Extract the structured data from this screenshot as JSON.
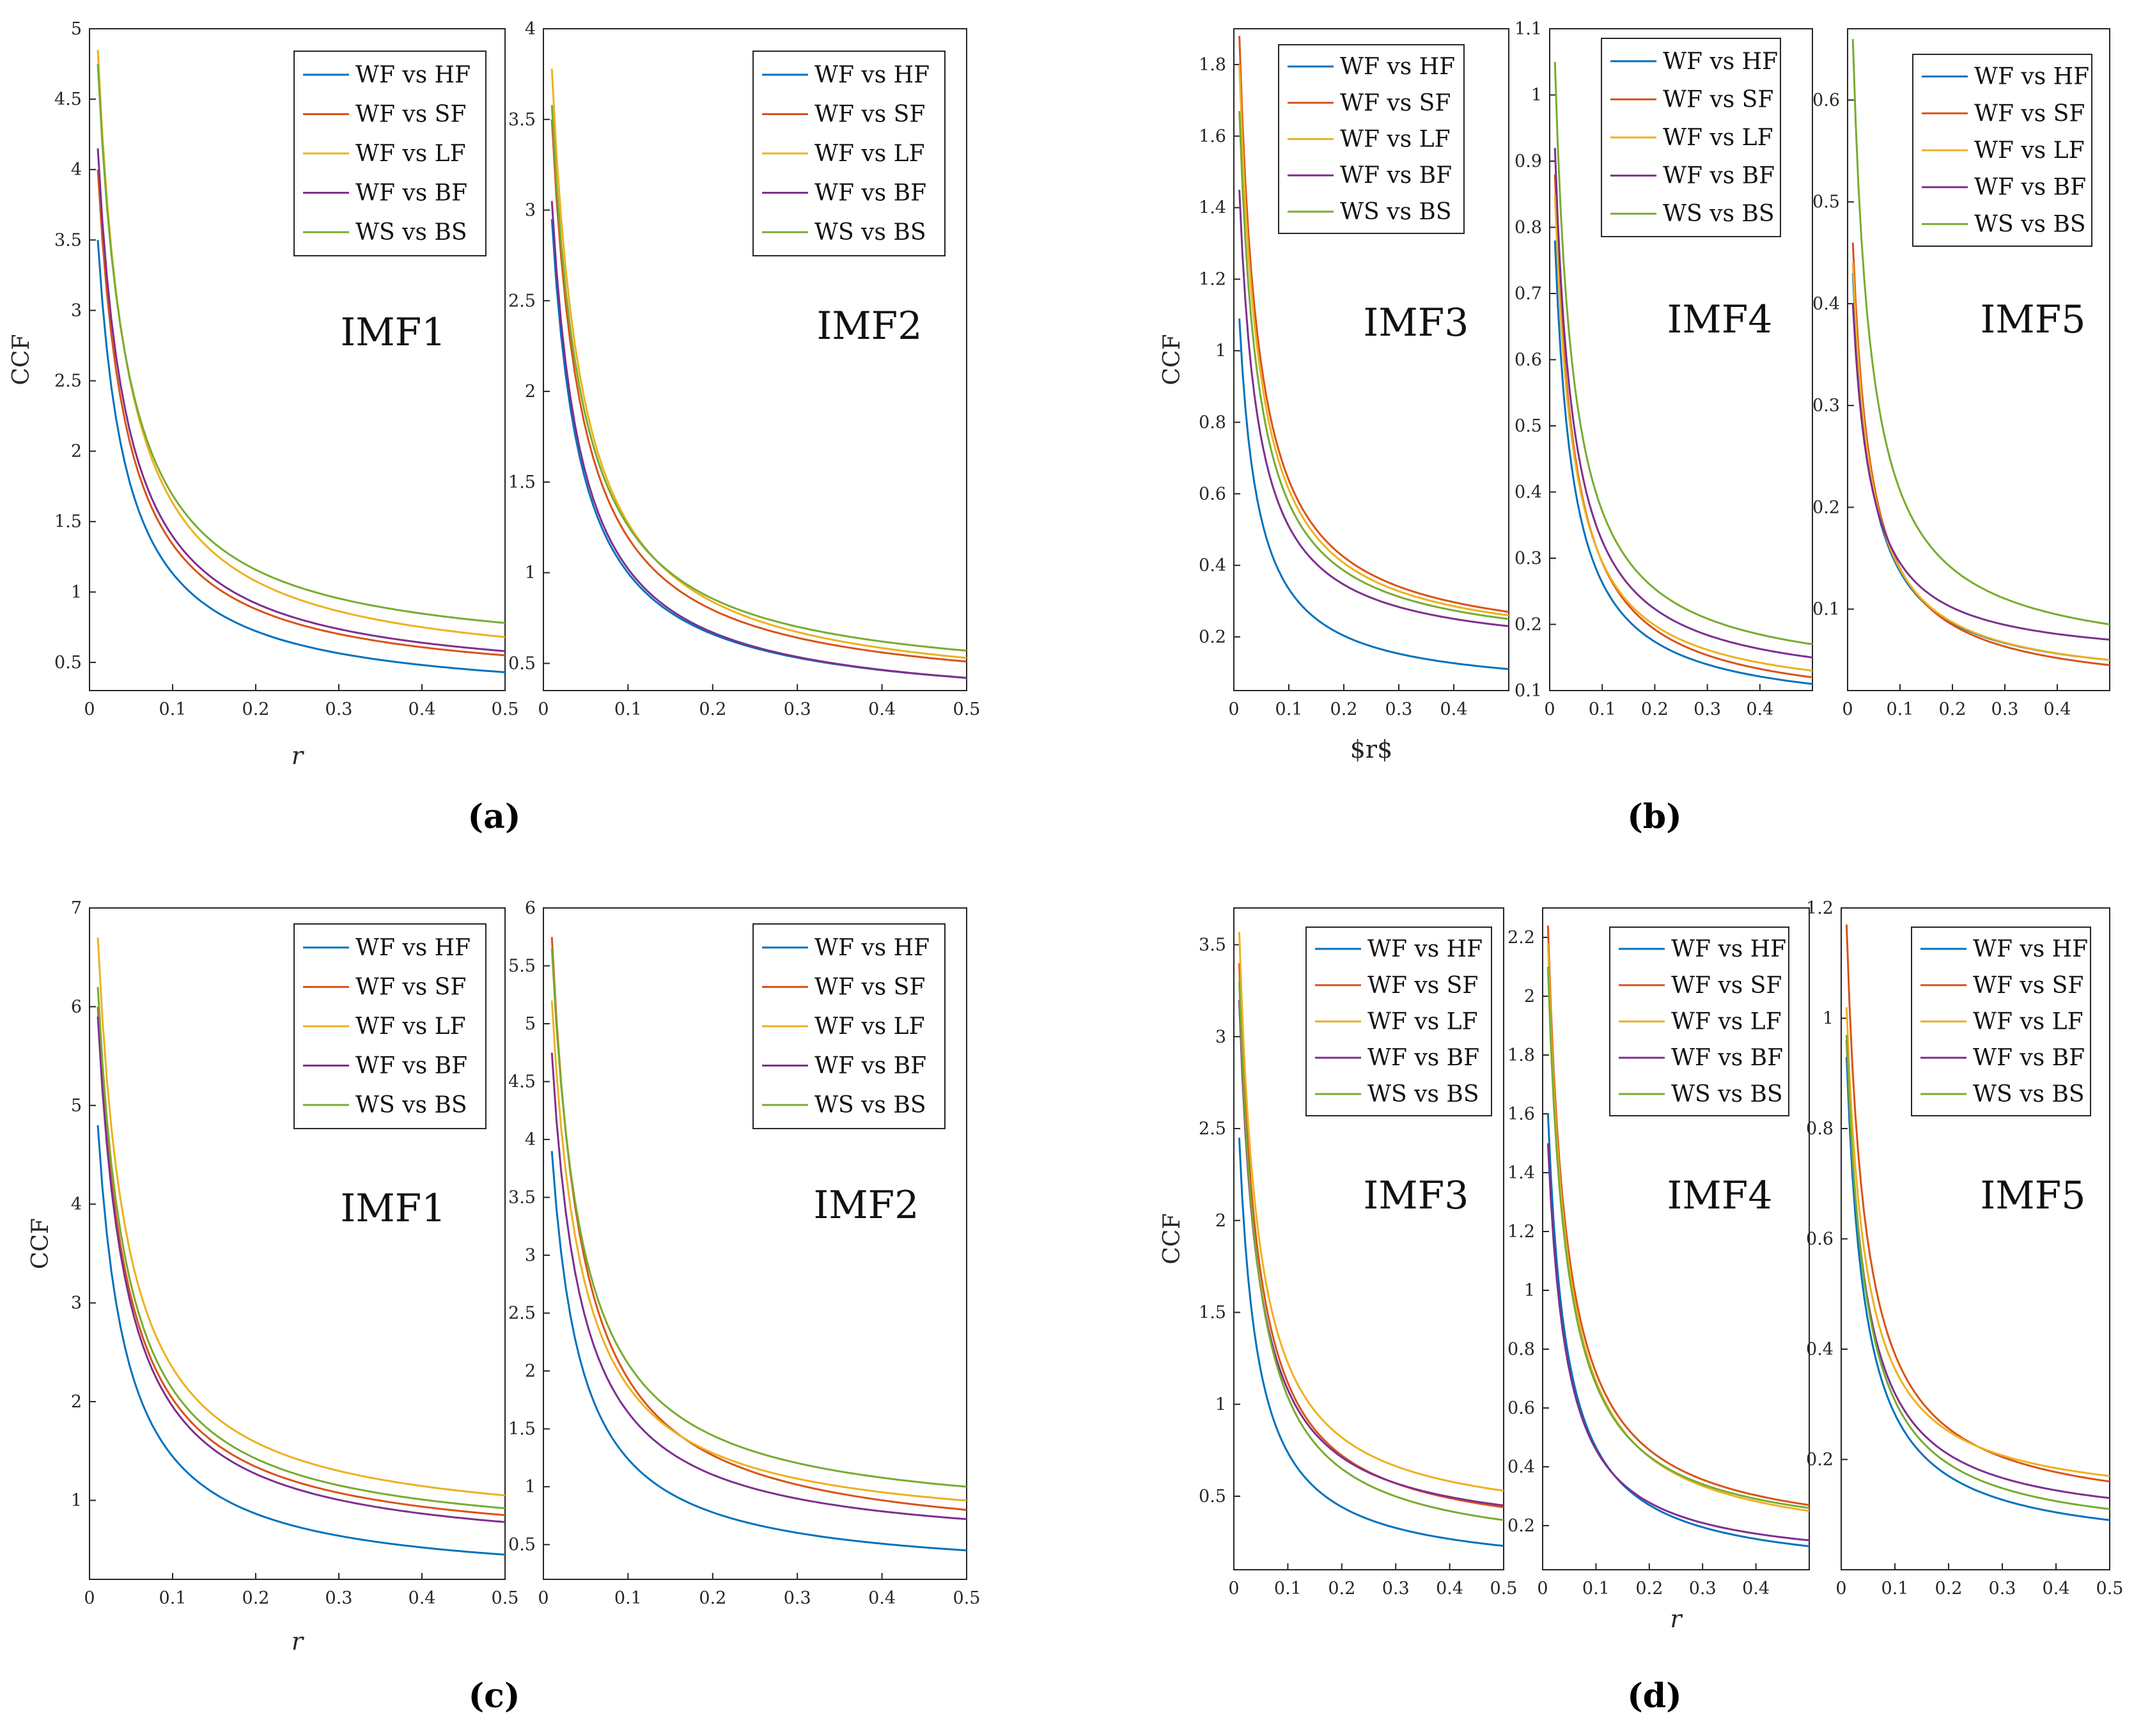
{
  "chart_data": [
    {
      "id": "a1",
      "panel": "a",
      "type": "line",
      "title": "IMF1",
      "xlabel": "r",
      "ylabel": "CCF",
      "xlim": [
        0,
        0.5
      ],
      "ylim": [
        0.3,
        5
      ],
      "xticks": [
        "0",
        "0.1",
        "0.2",
        "0.3",
        "0.4",
        "0.5"
      ],
      "yticks": [
        "0.5",
        "1",
        "1.5",
        "2",
        "2.5",
        "3",
        "3.5",
        "4",
        "4.5",
        "5"
      ],
      "legend": "top-right",
      "series": [
        {
          "name": "WF vs HF",
          "start": 3.5,
          "end": 0.43
        },
        {
          "name": "WF vs SF",
          "start": 4.0,
          "end": 0.55
        },
        {
          "name": "WF vs LF",
          "start": 4.85,
          "end": 0.68
        },
        {
          "name": "WF vs BF",
          "start": 4.15,
          "end": 0.58
        },
        {
          "name": "WS vs BS",
          "start": 4.75,
          "end": 0.78
        }
      ]
    },
    {
      "id": "a2",
      "panel": "a",
      "type": "line",
      "title": "IMF2",
      "xlabel": "",
      "ylabel": "",
      "xlim": [
        0,
        0.5
      ],
      "ylim": [
        0.35,
        4
      ],
      "xticks": [
        "0",
        "0.1",
        "0.2",
        "0.3",
        "0.4",
        "0.5"
      ],
      "yticks": [
        "0.5",
        "1",
        "1.5",
        "2",
        "2.5",
        "3",
        "3.5",
        "4"
      ],
      "legend": "top-right",
      "series": [
        {
          "name": "WF vs HF",
          "start": 2.95,
          "end": 0.42
        },
        {
          "name": "WF vs SF",
          "start": 3.5,
          "end": 0.51
        },
        {
          "name": "WF vs LF",
          "start": 3.78,
          "end": 0.53
        },
        {
          "name": "WF vs BF",
          "start": 3.05,
          "end": 0.42
        },
        {
          "name": "WS vs BS",
          "start": 3.58,
          "end": 0.57
        }
      ]
    },
    {
      "id": "b1",
      "panel": "b",
      "type": "line",
      "title": "IMF3",
      "xlabel": "$r$",
      "ylabel": "CCF",
      "xlim": [
        0,
        0.5
      ],
      "ylim": [
        0.05,
        1.9
      ],
      "xticks": [
        "0",
        "0.1",
        "0.2",
        "0.3",
        "0.4"
      ],
      "yticks": [
        "0.2",
        "0.4",
        "0.6",
        "0.8",
        "1",
        "1.2",
        "1.4",
        "1.6",
        "1.8"
      ],
      "legend": "top-left",
      "series": [
        {
          "name": "WF vs HF",
          "start": 1.09,
          "end": 0.11
        },
        {
          "name": "WF vs SF",
          "start": 1.88,
          "end": 0.27
        },
        {
          "name": "WF vs LF",
          "start": 1.8,
          "end": 0.26
        },
        {
          "name": "WF vs BF",
          "start": 1.45,
          "end": 0.23
        },
        {
          "name": "WS vs BS",
          "start": 1.67,
          "end": 0.25
        }
      ]
    },
    {
      "id": "b2",
      "panel": "b",
      "type": "line",
      "title": "IMF4",
      "xlabel": "",
      "ylabel": "",
      "xlim": [
        0,
        0.5
      ],
      "ylim": [
        0.1,
        1.1
      ],
      "xticks": [
        "0",
        "0.1",
        "0.2",
        "0.3",
        "0.4"
      ],
      "yticks": [
        "0.1",
        "0.2",
        "0.3",
        "0.4",
        "0.5",
        "0.6",
        "0.7",
        "0.8",
        "0.9",
        "1",
        "1.1"
      ],
      "legend": "top-right",
      "series": [
        {
          "name": "WF vs HF",
          "start": 0.78,
          "end": 0.11
        },
        {
          "name": "WF vs SF",
          "start": 0.88,
          "end": 0.12
        },
        {
          "name": "WF vs LF",
          "start": 0.85,
          "end": 0.13
        },
        {
          "name": "WF vs BF",
          "start": 0.92,
          "end": 0.15
        },
        {
          "name": "WS vs BS",
          "start": 1.05,
          "end": 0.17
        }
      ]
    },
    {
      "id": "b3",
      "panel": "b",
      "type": "line",
      "title": "IMF5",
      "xlabel": "",
      "ylabel": "",
      "xlim": [
        0,
        0.5
      ],
      "ylim": [
        0.02,
        0.67
      ],
      "xticks": [
        "0",
        "0.1",
        "0.2",
        "0.3",
        "0.4"
      ],
      "yticks": [
        "0.1",
        "0.2",
        "0.3",
        "0.4",
        "0.5",
        "0.6"
      ],
      "legend": "top-right",
      "series": [
        {
          "name": "WF vs HF",
          "start": 0.43,
          "end": 0.05
        },
        {
          "name": "WF vs SF",
          "start": 0.46,
          "end": 0.045
        },
        {
          "name": "WF vs LF",
          "start": 0.44,
          "end": 0.05
        },
        {
          "name": "WF vs BF",
          "start": 0.4,
          "end": 0.07
        },
        {
          "name": "WS vs BS",
          "start": 0.66,
          "end": 0.085
        }
      ]
    },
    {
      "id": "c1",
      "panel": "c",
      "type": "line",
      "title": "IMF1",
      "xlabel": "r",
      "ylabel": "CCF",
      "xlim": [
        0,
        0.5
      ],
      "ylim": [
        0.2,
        7
      ],
      "xticks": [
        "0",
        "0.1",
        "0.2",
        "0.3",
        "0.4",
        "0.5"
      ],
      "yticks": [
        "1",
        "2",
        "3",
        "4",
        "5",
        "6",
        "7"
      ],
      "legend": "top-right",
      "series": [
        {
          "name": "WF vs HF",
          "start": 4.8,
          "end": 0.45
        },
        {
          "name": "WF vs SF",
          "start": 6.0,
          "end": 0.85
        },
        {
          "name": "WF vs LF",
          "start": 6.7,
          "end": 1.05
        },
        {
          "name": "WF vs BF",
          "start": 5.9,
          "end": 0.78
        },
        {
          "name": "WS vs BS",
          "start": 6.2,
          "end": 0.92
        }
      ]
    },
    {
      "id": "c2",
      "panel": "c",
      "type": "line",
      "title": "IMF2",
      "xlabel": "",
      "ylabel": "",
      "xlim": [
        0,
        0.5
      ],
      "ylim": [
        0.2,
        6
      ],
      "xticks": [
        "0",
        "0.1",
        "0.2",
        "0.3",
        "0.4",
        "0.5"
      ],
      "yticks": [
        "0.5",
        "1",
        "1.5",
        "2",
        "2.5",
        "3",
        "3.5",
        "4",
        "4.5",
        "5",
        "5.5",
        "6"
      ],
      "legend": "top-right",
      "series": [
        {
          "name": "WF vs HF",
          "start": 3.9,
          "end": 0.45
        },
        {
          "name": "WF vs SF",
          "start": 5.75,
          "end": 0.8
        },
        {
          "name": "WF vs LF",
          "start": 5.2,
          "end": 0.88
        },
        {
          "name": "WF vs BF",
          "start": 4.75,
          "end": 0.72
        },
        {
          "name": "WS vs BS",
          "start": 5.65,
          "end": 1.0
        }
      ]
    },
    {
      "id": "d1",
      "panel": "d",
      "type": "line",
      "title": "IMF3",
      "xlabel": "",
      "ylabel": "CCF",
      "xlim": [
        0,
        0.5
      ],
      "ylim": [
        0.1,
        3.7
      ],
      "xticks": [
        "0",
        "0.1",
        "0.2",
        "0.3",
        "0.4",
        "0.5"
      ],
      "yticks": [
        "0.5",
        "1",
        "1.5",
        "2",
        "2.5",
        "3",
        "3.5"
      ],
      "legend": "top-right",
      "series": [
        {
          "name": "WF vs HF",
          "start": 2.45,
          "end": 0.23
        },
        {
          "name": "WF vs SF",
          "start": 3.4,
          "end": 0.44
        },
        {
          "name": "WF vs LF",
          "start": 3.57,
          "end": 0.53
        },
        {
          "name": "WF vs BF",
          "start": 3.2,
          "end": 0.45
        },
        {
          "name": "WS vs BS",
          "start": 3.3,
          "end": 0.37
        }
      ]
    },
    {
      "id": "d2",
      "panel": "d",
      "type": "line",
      "title": "IMF4",
      "xlabel": "r",
      "ylabel": "",
      "xlim": [
        0,
        0.5
      ],
      "ylim": [
        0.05,
        2.3
      ],
      "xticks": [
        "0",
        "0.1",
        "0.2",
        "0.3",
        "0.4"
      ],
      "yticks": [
        "0.2",
        "0.4",
        "0.6",
        "0.8",
        "1",
        "1.2",
        "1.4",
        "1.6",
        "1.8",
        "2",
        "2.2"
      ],
      "legend": "top-right",
      "series": [
        {
          "name": "WF vs HF",
          "start": 1.6,
          "end": 0.13
        },
        {
          "name": "WF vs SF",
          "start": 2.24,
          "end": 0.27
        },
        {
          "name": "WF vs LF",
          "start": 2.18,
          "end": 0.25
        },
        {
          "name": "WF vs BF",
          "start": 1.5,
          "end": 0.15
        },
        {
          "name": "WS vs BS",
          "start": 2.1,
          "end": 0.26
        }
      ]
    },
    {
      "id": "d3",
      "panel": "d",
      "type": "line",
      "title": "IMF5",
      "xlabel": "",
      "ylabel": "",
      "xlim": [
        0,
        0.5
      ],
      "ylim": [
        0,
        1.2
      ],
      "xticks": [
        "0",
        "0.1",
        "0.2",
        "0.3",
        "0.4",
        "0.5"
      ],
      "yticks": [
        "0.2",
        "0.4",
        "0.6",
        "0.8",
        "1",
        "1.2"
      ],
      "legend": "top-right",
      "series": [
        {
          "name": "WF vs HF",
          "start": 0.93,
          "end": 0.09
        },
        {
          "name": "WF vs SF",
          "start": 1.17,
          "end": 0.16
        },
        {
          "name": "WF vs LF",
          "start": 1.02,
          "end": 0.17
        },
        {
          "name": "WF vs BF",
          "start": 0.96,
          "end": 0.13
        },
        {
          "name": "WS vs BS",
          "start": 0.97,
          "end": 0.11
        }
      ]
    }
  ],
  "series_colors": [
    "#0072BD",
    "#D95319",
    "#EDB120",
    "#7E2F8E",
    "#77AC30"
  ],
  "subfigure_labels": {
    "a": "(a)",
    "b": "(b)",
    "c": "(c)",
    "d": "(d)"
  }
}
